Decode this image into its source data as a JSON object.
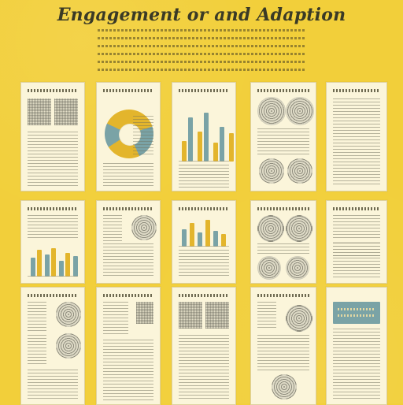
{
  "poster": {
    "title": "Engagement or and Adaption"
  },
  "colors": {
    "background": "#f2cf3a",
    "paper": "#fbf5da",
    "accent_gold": "#e3b52c",
    "accent_teal": "#7aa3a6",
    "text_dark": "#3a3a26"
  },
  "cards": [
    {
      "row": 1,
      "col": 1,
      "kind": "two-blocks-text"
    },
    {
      "row": 1,
      "col": 2,
      "kind": "donut-chart"
    },
    {
      "row": 1,
      "col": 3,
      "kind": "bar-chart"
    },
    {
      "row": 1,
      "col": 4,
      "kind": "circles-and-text"
    },
    {
      "row": 1,
      "col": 5,
      "kind": "dense-text"
    },
    {
      "row": 2,
      "col": 1,
      "kind": "bar-chart-small"
    },
    {
      "row": 2,
      "col": 2,
      "kind": "circle-and-text"
    },
    {
      "row": 2,
      "col": 3,
      "kind": "bar-chart"
    },
    {
      "row": 2,
      "col": 4,
      "kind": "circles-and-text"
    },
    {
      "row": 2,
      "col": 5,
      "kind": "text-with-callout"
    },
    {
      "row": 3,
      "col": 1,
      "kind": "circles-and-text"
    },
    {
      "row": 3,
      "col": 2,
      "kind": "image-and-text"
    },
    {
      "row": 3,
      "col": 3,
      "kind": "two-blocks-text"
    },
    {
      "row": 3,
      "col": 4,
      "kind": "circles-and-text"
    },
    {
      "row": 3,
      "col": 5,
      "kind": "banner-and-text"
    }
  ]
}
